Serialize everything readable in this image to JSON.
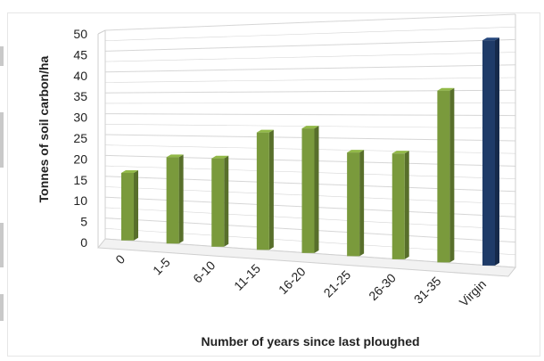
{
  "chart_data": {
    "type": "bar",
    "title": "",
    "xlabel": "Number of years since last ploughed",
    "ylabel": "Tonnes of soil carbon/ha",
    "categories": [
      "0",
      "1-5",
      "6-10",
      "11-15",
      "16-20",
      "21-25",
      "26-30",
      "31-35",
      "Virgin"
    ],
    "values": [
      16,
      20,
      20,
      26,
      27,
      22,
      22,
      35,
      45
    ],
    "ylim": [
      0,
      50
    ],
    "yticks": [
      "0",
      "5",
      "10",
      "15",
      "20",
      "25",
      "30",
      "35",
      "40",
      "45",
      "50"
    ],
    "grid": true,
    "legend": "none",
    "style": "3d-perspective",
    "colors": {
      "bar_default": "#7a9a3c",
      "bar_virgin": "#1f3b68",
      "grid": "#d6d6d6",
      "axis": "#cfcfcf"
    }
  }
}
